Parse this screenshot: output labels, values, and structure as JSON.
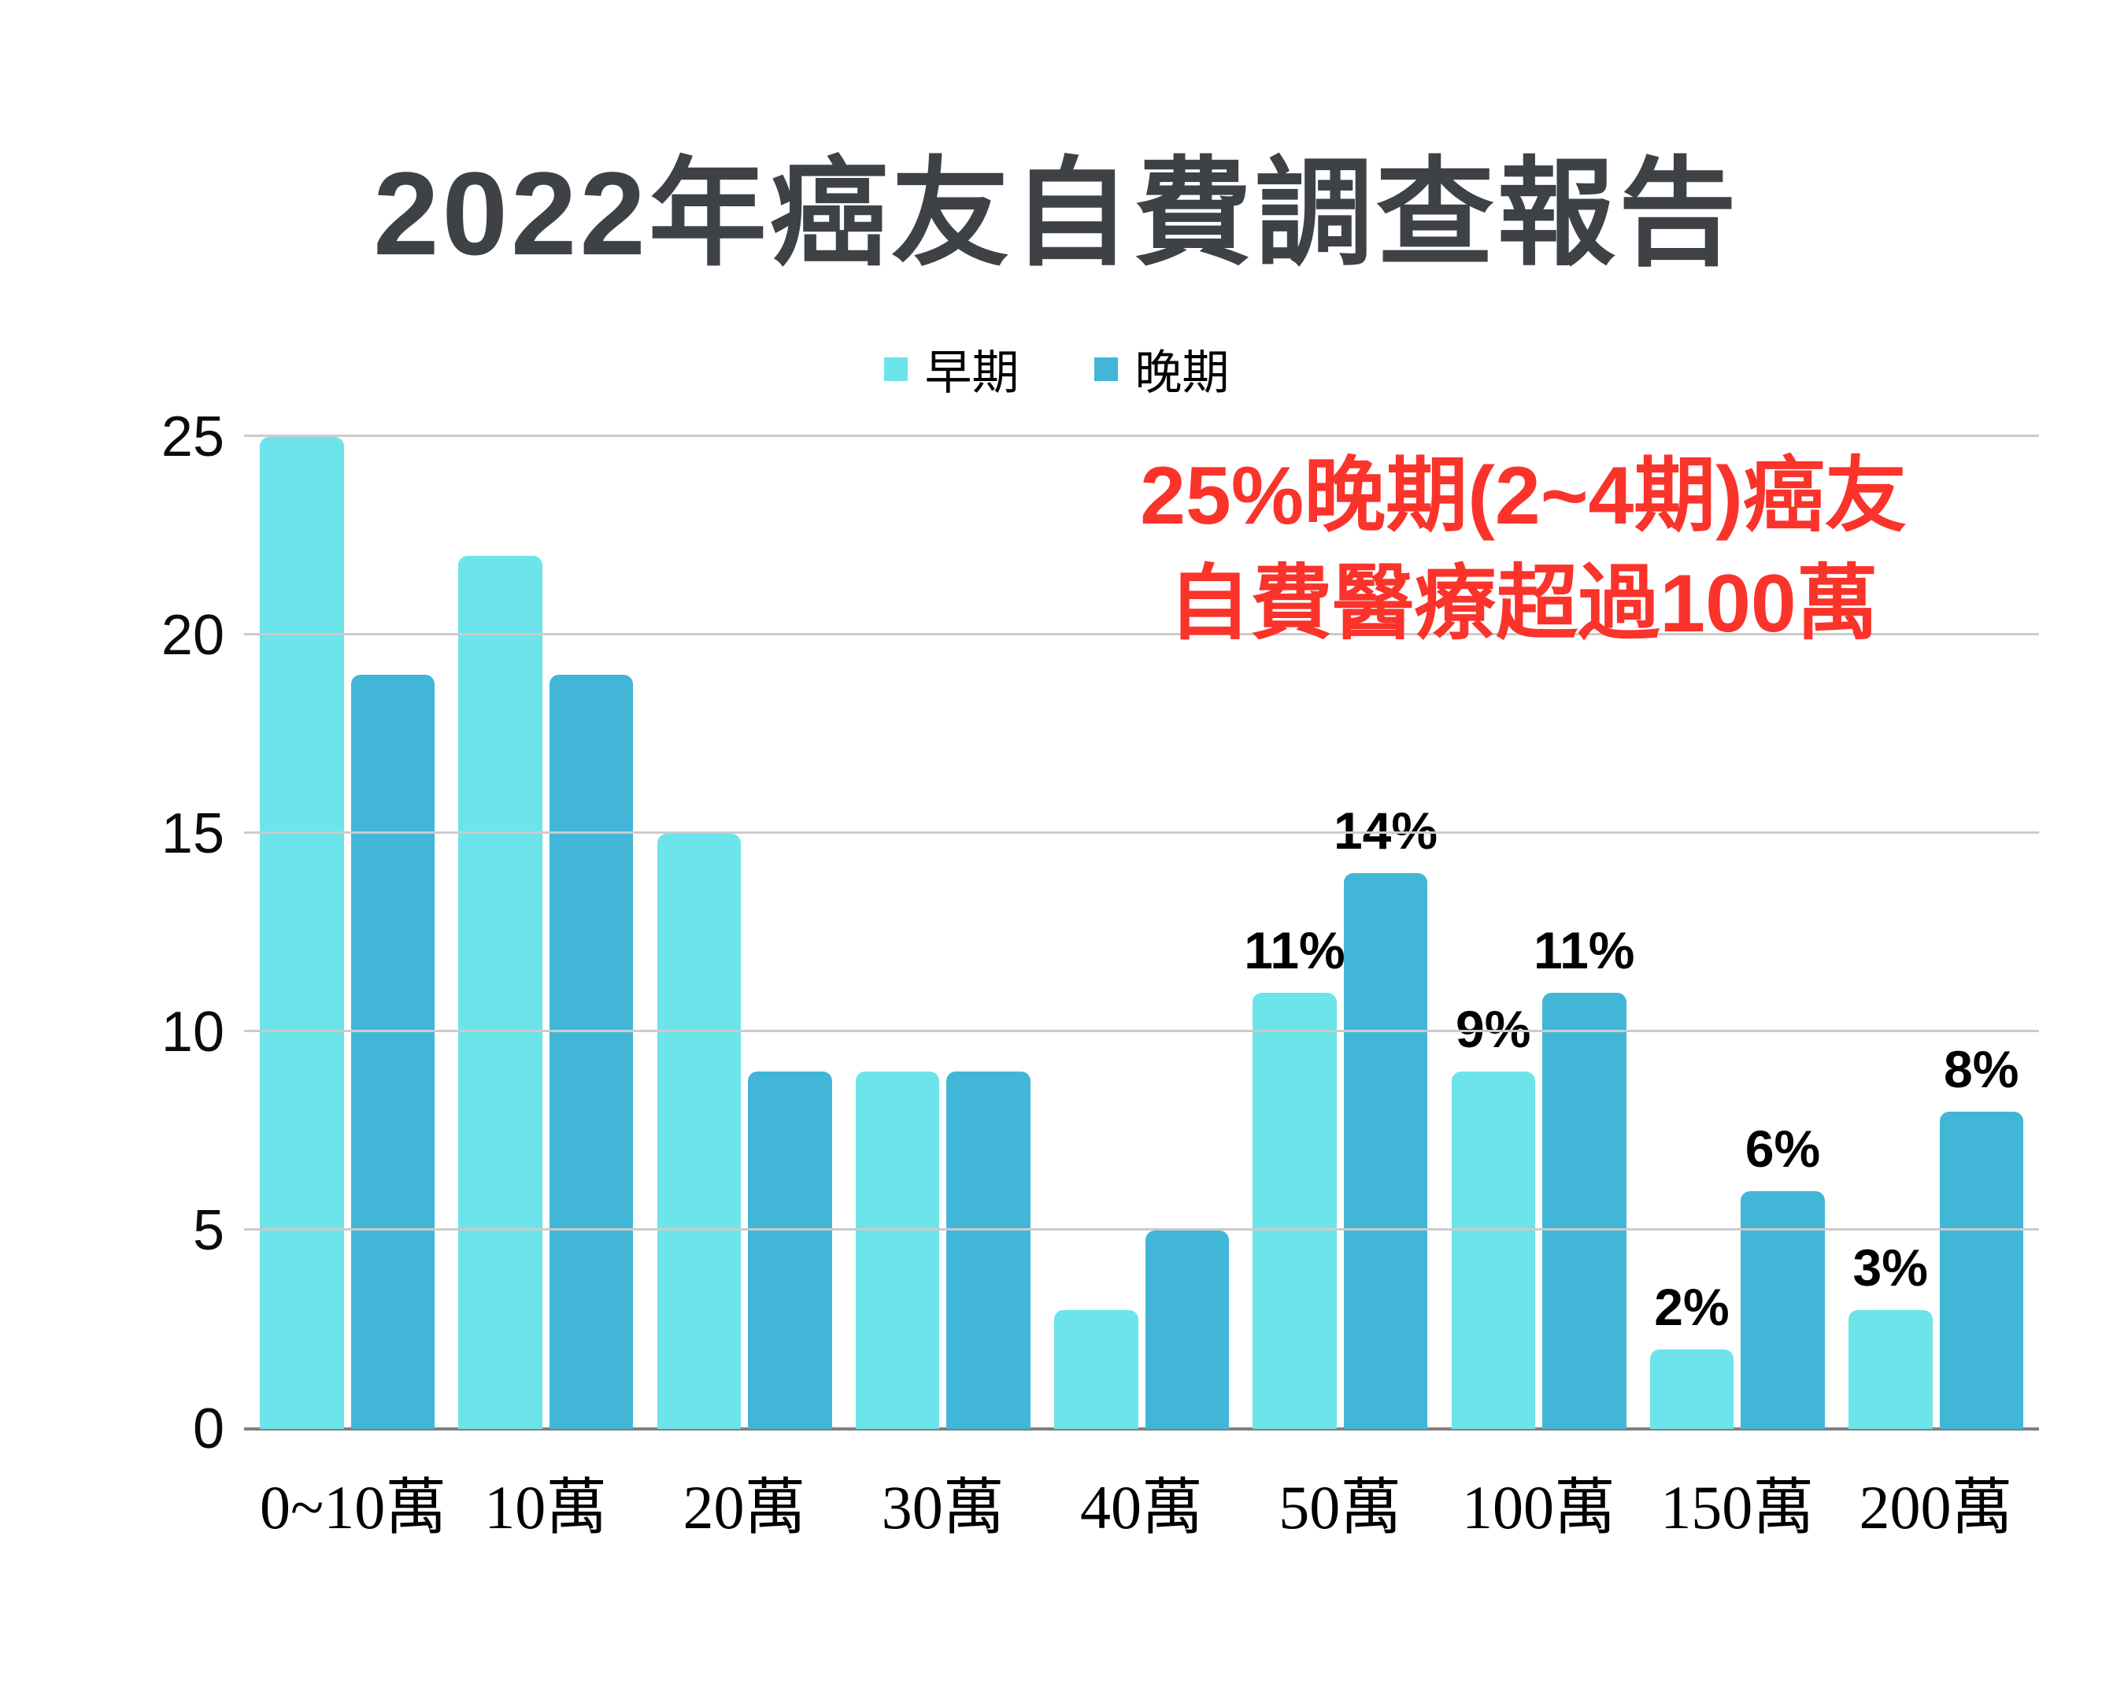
{
  "title": "2022年癌友自費調查報告",
  "legend": {
    "items": [
      {
        "label": "早期",
        "color": "#6CE4E9"
      },
      {
        "label": "晚期",
        "color": "#41B6D6"
      }
    ]
  },
  "annotation": {
    "line1": "25%晚期(2~4期)癌友",
    "line2": "自費醫療超過100萬",
    "color": "#FA332B"
  },
  "colors": {
    "early_bar": "#6CE4E9",
    "late_bar": "#41B6D6",
    "title_text": "#3E4247",
    "gridline": "#CBCBCB",
    "axis_line": "#7F7F7F",
    "label_text": "#000000"
  },
  "chart_data": {
    "type": "bar",
    "categories": [
      "0~10萬",
      "10萬",
      "20萬",
      "30萬",
      "40萬",
      "50萬",
      "100萬",
      "150萬",
      "200萬"
    ],
    "series": [
      {
        "name": "早期",
        "color": "#6CE4E9",
        "values": [
          25,
          22,
          15,
          9,
          3,
          11,
          9,
          2,
          3
        ],
        "data_labels": [
          "",
          "",
          "",
          "",
          "",
          "11%",
          "9%",
          "2%",
          "3%"
        ]
      },
      {
        "name": "晚期",
        "color": "#41B6D6",
        "values": [
          19,
          19,
          9,
          9,
          5,
          14,
          11,
          6,
          8
        ],
        "data_labels": [
          "",
          "",
          "",
          "",
          "",
          "14%",
          "11%",
          "6%",
          "8%"
        ]
      }
    ],
    "title": "2022年癌友自費調查報告",
    "xlabel": "",
    "ylabel": "",
    "ylim": [
      0,
      25
    ],
    "yticks": [
      0,
      5,
      10,
      15,
      20,
      25
    ],
    "grid": true,
    "legend_position": "top-center"
  }
}
